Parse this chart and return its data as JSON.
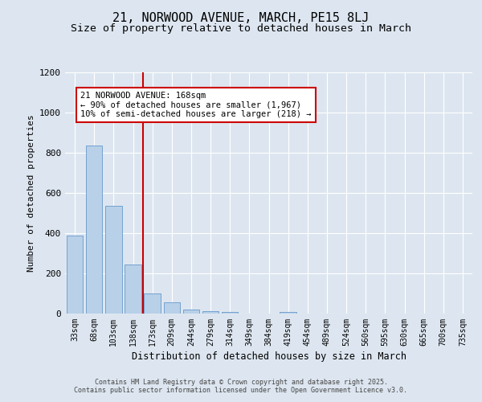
{
  "title_line1": "21, NORWOOD AVENUE, MARCH, PE15 8LJ",
  "title_line2": "Size of property relative to detached houses in March",
  "xlabel": "Distribution of detached houses by size in March",
  "ylabel": "Number of detached properties",
  "categories": [
    "33sqm",
    "68sqm",
    "103sqm",
    "138sqm",
    "173sqm",
    "209sqm",
    "244sqm",
    "279sqm",
    "314sqm",
    "349sqm",
    "384sqm",
    "419sqm",
    "454sqm",
    "489sqm",
    "524sqm",
    "560sqm",
    "595sqm",
    "630sqm",
    "665sqm",
    "700sqm",
    "735sqm"
  ],
  "values": [
    390,
    835,
    535,
    245,
    100,
    55,
    22,
    12,
    10,
    0,
    0,
    10,
    0,
    0,
    0,
    0,
    0,
    0,
    0,
    0,
    0
  ],
  "bar_color": "#b8d0e8",
  "bar_edge_color": "#6699cc",
  "vline_index": 4,
  "vline_color": "#cc0000",
  "annotation_text": "21 NORWOOD AVENUE: 168sqm\n← 90% of detached houses are smaller (1,967)\n10% of semi-detached houses are larger (218) →",
  "annotation_box_color": "#cc0000",
  "ylim": [
    0,
    1200
  ],
  "yticks": [
    0,
    200,
    400,
    600,
    800,
    1000,
    1200
  ],
  "fig_bg_color": "#dde6f0",
  "plot_bg_color": "#dde6f0",
  "grid_color": "#ffffff",
  "footer_line1": "Contains HM Land Registry data © Crown copyright and database right 2025.",
  "footer_line2": "Contains public sector information licensed under the Open Government Licence v3.0.",
  "title_fontsize": 11,
  "subtitle_fontsize": 9.5,
  "annotation_fontsize": 7.5,
  "footer_fontsize": 6.0
}
